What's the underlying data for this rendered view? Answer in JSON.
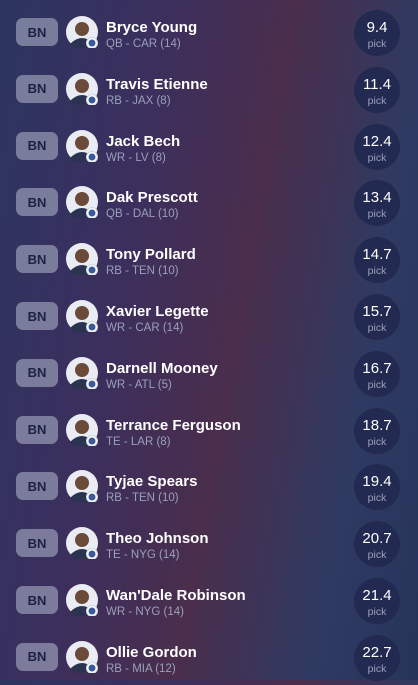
{
  "roster": {
    "rows": [
      {
        "slot": "BN",
        "name": "Bryce Young",
        "detail": "QB - CAR (14)",
        "pick": 9.4,
        "pick_label": "pick"
      },
      {
        "slot": "BN",
        "name": "Travis Etienne",
        "detail": "RB - JAX (8)",
        "pick": 11.4,
        "pick_label": "pick"
      },
      {
        "slot": "BN",
        "name": "Jack Bech",
        "detail": "WR - LV (8)",
        "pick": 12.4,
        "pick_label": "pick"
      },
      {
        "slot": "BN",
        "name": "Dak Prescott",
        "detail": "QB - DAL (10)",
        "pick": 13.4,
        "pick_label": "pick"
      },
      {
        "slot": "BN",
        "name": "Tony Pollard",
        "detail": "RB - TEN (10)",
        "pick": 14.7,
        "pick_label": "pick"
      },
      {
        "slot": "BN",
        "name": "Xavier Legette",
        "detail": "WR - CAR (14)",
        "pick": 15.7,
        "pick_label": "pick"
      },
      {
        "slot": "BN",
        "name": "Darnell Mooney",
        "detail": "WR - ATL (5)",
        "pick": 16.7,
        "pick_label": "pick"
      },
      {
        "slot": "BN",
        "name": "Terrance Ferguson",
        "detail": "TE - LAR (8)",
        "pick": 18.7,
        "pick_label": "pick"
      },
      {
        "slot": "BN",
        "name": "Tyjae Spears",
        "detail": "RB - TEN (10)",
        "pick": 19.4,
        "pick_label": "pick"
      },
      {
        "slot": "BN",
        "name": "Theo Johnson",
        "detail": "TE - NYG (14)",
        "pick": 20.7,
        "pick_label": "pick"
      },
      {
        "slot": "BN",
        "name": "Wan'Dale Robinson",
        "detail": "WR - NYG (14)",
        "pick": 21.4,
        "pick_label": "pick"
      },
      {
        "slot": "BN",
        "name": "Ollie Gordon",
        "detail": "RB - MIA (12)",
        "pick": 22.7,
        "pick_label": "pick"
      }
    ]
  }
}
